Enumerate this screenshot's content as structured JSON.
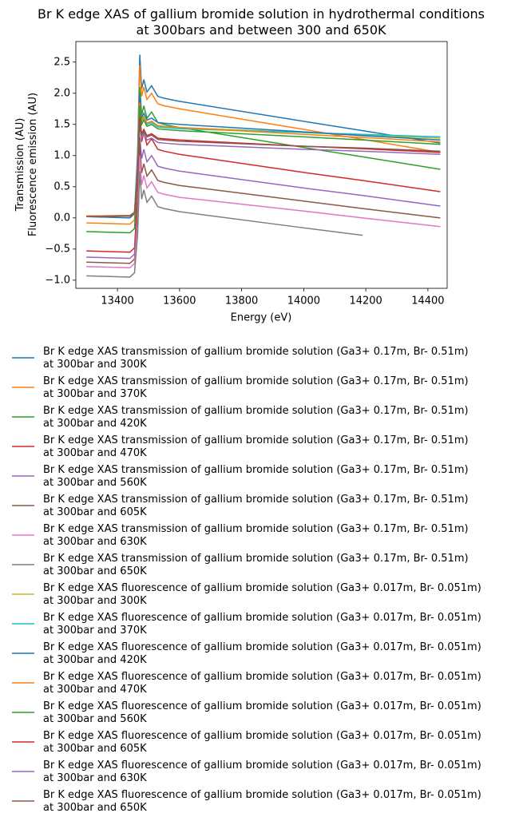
{
  "chart_data": {
    "type": "line",
    "title": "Br K edge XAS of gallium bromide solution in hydrothermal conditions\nat 300bars and between 300 and 650K",
    "xlabel": "Energy (eV)",
    "ylabel": "Transmission (AU)\nFluorescence emission (AU)",
    "x": [
      13300,
      13440,
      13455,
      13465,
      13472,
      13478,
      13485,
      13495,
      13510,
      13530,
      13550,
      13600,
      14000,
      14190,
      14440
    ],
    "xlim": [
      13266,
      14462
    ],
    "xticks": [
      13400,
      13600,
      13800,
      14000,
      14200,
      14400
    ],
    "ylim": [
      -1.13,
      2.83
    ],
    "yticks": [
      {
        "value": -1,
        "label": "−1.0"
      },
      {
        "value": -0.5,
        "label": "−0.5"
      },
      {
        "value": 0,
        "label": "0.0"
      },
      0.5,
      {
        "value": 1,
        "label": "1.0"
      },
      1.5,
      {
        "value": 2,
        "label": "2.0"
      },
      2.5
    ],
    "legend": "below",
    "series": [
      {
        "name": "Br K edge XAS transmission of gallium bromide solution (Ga3+ 0.17m, Br- 0.51m)\nat 300bar and 300K",
        "color": "#1f77b4",
        "values": [
          0.02,
          0.0,
          0.07,
          1.06,
          2.62,
          2.07,
          2.22,
          2.02,
          2.12,
          1.95,
          1.92,
          1.87,
          1.55,
          1.4,
          1.2
        ]
      },
      {
        "name": "Br K edge XAS transmission of gallium bromide solution (Ga3+ 0.17m, Br- 0.51m)\nat 300bar and 370K",
        "color": "#ff7f0e",
        "values": [
          -0.08,
          -0.1,
          -0.03,
          0.93,
          2.45,
          1.95,
          2.1,
          1.9,
          2.0,
          1.83,
          1.8,
          1.75,
          1.42,
          1.26,
          1.05
        ]
      },
      {
        "name": "Br K edge XAS transmission of gallium bromide solution (Ga3+ 0.17m, Br- 0.51m)\nat 300bar and 420K",
        "color": "#2ca02c",
        "values": [
          -0.22,
          -0.24,
          -0.17,
          0.71,
          2.1,
          1.65,
          1.8,
          1.6,
          1.7,
          1.53,
          1.5,
          1.45,
          1.13,
          0.98,
          0.78
        ]
      },
      {
        "name": "Br K edge XAS transmission of gallium bromide solution (Ga3+ 0.17m, Br- 0.51m)\nat 300bar and 470K",
        "color": "#d62728",
        "values": [
          -0.53,
          -0.55,
          -0.48,
          0.36,
          1.7,
          1.22,
          1.37,
          1.17,
          1.27,
          1.1,
          1.07,
          1.02,
          0.73,
          0.6,
          0.42
        ]
      },
      {
        "name": "Br K edge XAS transmission of gallium bromide solution (Ga3+ 0.17m, Br- 0.51m)\nat 300bar and 560K",
        "color": "#9467bd",
        "values": [
          -0.63,
          -0.65,
          -0.58,
          0.14,
          1.3,
          0.95,
          1.1,
          0.9,
          1.0,
          0.83,
          0.8,
          0.75,
          0.48,
          0.36,
          0.19
        ]
      },
      {
        "name": "Br K edge XAS transmission of gallium bromide solution (Ga3+ 0.17m, Br- 0.51m)\nat 300bar and 605K",
        "color": "#8c564b",
        "values": [
          -0.71,
          -0.73,
          -0.66,
          0.05,
          1.2,
          0.72,
          0.87,
          0.67,
          0.77,
          0.6,
          0.57,
          0.52,
          0.27,
          0.15,
          0.0
        ]
      },
      {
        "name": "Br K edge XAS transmission of gallium bromide solution (Ga3+ 0.17m, Br- 0.51m)\nat 300bar and 630K",
        "color": "#e377c2",
        "values": [
          -0.78,
          -0.8,
          -0.73,
          -0.07,
          1.0,
          0.53,
          0.68,
          0.48,
          0.58,
          0.41,
          0.38,
          0.33,
          0.11,
          0.0,
          -0.14
        ]
      },
      {
        "name": "Br K edge XAS transmission of gallium bromide solution (Ga3+ 0.17m, Br- 0.51m)\nat 300bar and 650K",
        "color": "#7f7f7f",
        "values": [
          -0.93,
          -0.95,
          -0.88,
          -0.26,
          0.75,
          0.3,
          0.45,
          0.25,
          0.35,
          0.18,
          0.15,
          0.1,
          -0.16,
          -0.28,
          null
        ]
      },
      {
        "name": "Br K edge XAS fluorescence of gallium bromide solution (Ga3+ 0.017m, Br- 0.051m)\nat 300bar and 300K",
        "color": "#bcbd22",
        "values": [
          0.02,
          0.03,
          0.08,
          0.77,
          1.9,
          1.55,
          1.62,
          1.52,
          1.55,
          1.48,
          1.47,
          1.45,
          1.37,
          1.33,
          1.28
        ]
      },
      {
        "name": "Br K edge XAS fluorescence of gallium bromide solution (Ga3+ 0.017m, Br- 0.051m)\nat 300bar and 370K",
        "color": "#17becf",
        "values": [
          0.02,
          0.03,
          0.08,
          0.79,
          1.95,
          1.55,
          1.62,
          1.5,
          1.53,
          1.46,
          1.45,
          1.43,
          1.37,
          1.34,
          1.3
        ]
      },
      {
        "name": "Br K edge XAS fluorescence of gallium bromide solution (Ga3+ 0.017m, Br- 0.051m)\nat 300bar and 420K",
        "color": "#1f77b4",
        "values": [
          0.03,
          0.04,
          0.09,
          0.82,
          2.0,
          1.6,
          1.68,
          1.57,
          1.6,
          1.53,
          1.52,
          1.5,
          1.38,
          1.32,
          1.25
        ]
      },
      {
        "name": "Br K edge XAS fluorescence of gallium bromide solution (Ga3+ 0.017m, Br- 0.051m)\nat 300bar and 470K",
        "color": "#ff7f0e",
        "values": [
          0.03,
          0.04,
          0.09,
          0.76,
          1.85,
          1.55,
          1.62,
          1.52,
          1.55,
          1.48,
          1.47,
          1.45,
          1.34,
          1.29,
          1.22
        ]
      },
      {
        "name": "Br K edge XAS fluorescence of gallium bromide solution (Ga3+ 0.017m, Br- 0.051m)\nat 300bar and 560K",
        "color": "#2ca02c",
        "values": [
          0.02,
          0.03,
          0.08,
          0.73,
          1.8,
          1.5,
          1.57,
          1.47,
          1.5,
          1.43,
          1.42,
          1.4,
          1.3,
          1.25,
          1.18
        ]
      },
      {
        "name": "Br K edge XAS fluorescence of gallium bromide solution (Ga3+ 0.017m, Br- 0.051m)\nat 300bar and 605K",
        "color": "#d62728",
        "values": [
          0.02,
          0.03,
          0.08,
          0.65,
          1.6,
          1.35,
          1.42,
          1.32,
          1.35,
          1.28,
          1.27,
          1.25,
          1.15,
          1.11,
          1.05
        ]
      },
      {
        "name": "Br K edge XAS fluorescence of gallium bromide solution (Ga3+ 0.017m, Br- 0.051m)\nat 300bar and 630K",
        "color": "#9467bd",
        "values": [
          0.02,
          0.03,
          0.08,
          0.61,
          1.5,
          1.28,
          1.35,
          1.25,
          1.28,
          1.21,
          1.2,
          1.18,
          1.1,
          1.07,
          1.02
        ]
      },
      {
        "name": "Br K edge XAS fluorescence of gallium bromide solution (Ga3+ 0.017m, Br- 0.051m)\nat 300bar and 650K",
        "color": "#8c564b",
        "values": [
          0.02,
          0.03,
          0.08,
          0.63,
          1.55,
          1.33,
          1.4,
          1.3,
          1.33,
          1.26,
          1.25,
          1.23,
          1.15,
          1.12,
          1.07
        ]
      }
    ]
  }
}
